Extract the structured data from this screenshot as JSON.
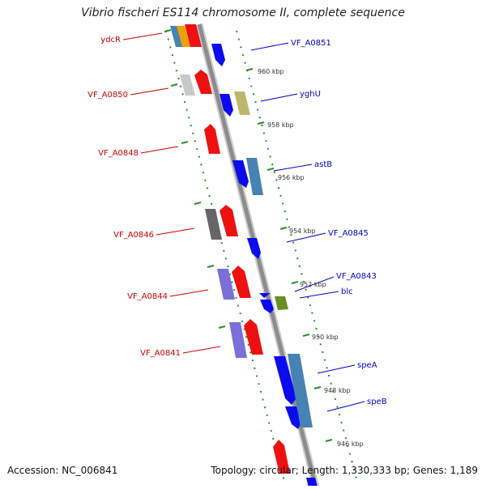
{
  "title": "Vibrio fischeri ES114 chromosome II, complete sequence",
  "footer": {
    "accession": "Accession: NC_006841",
    "topology": "Topology: circular; Length: 1,330,333 bp; Genes: 1,189"
  },
  "colors": {
    "backbone": "#8c8c8c",
    "tick_dots": "#2e8b2e",
    "left_labels": "#cc0000",
    "right_labels": "#0000cc",
    "gene_red": "#ee1111",
    "gene_blue": "#0b0bee",
    "gene_steel": "#4682b4",
    "gene_gray": "#c8c8c8",
    "gene_dark": "#666666",
    "gene_violet": "#7b6fd9",
    "gene_olive": "#6b8e23",
    "gene_khaki": "#bdb76b",
    "gene_orange": "#f0a000"
  },
  "left_labels": [
    "ydcR",
    "VF_A0850",
    "VF_A0848",
    "VF_A0846",
    "VF_A0844",
    "VF_A0841"
  ],
  "right_labels": [
    "VF_A0851",
    "yghU",
    "astB",
    "VF_A0845",
    "VF_A0843",
    "blc",
    "speA",
    "speB"
  ],
  "scale_ticks": [
    "960 kbp",
    "958 kbp",
    "956 kbp",
    "954 kbp",
    "952 kbp",
    "950 kbp",
    "948 kbp",
    "946 kbp"
  ]
}
